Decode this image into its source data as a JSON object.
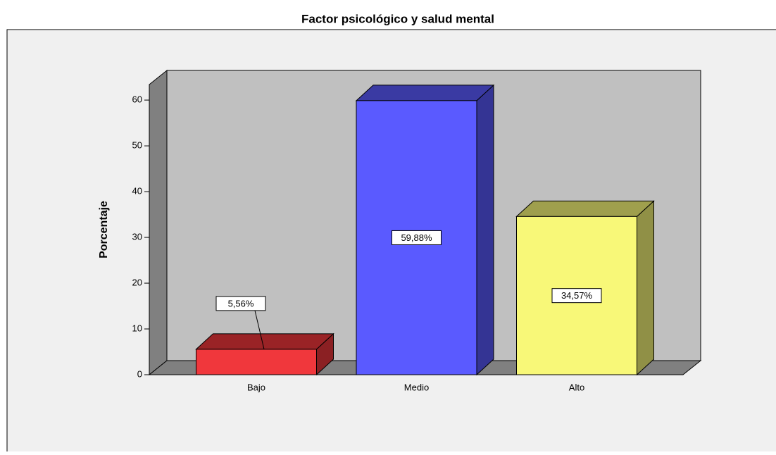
{
  "chart_data": {
    "type": "bar3d",
    "title": "Factor psicológico y salud mental",
    "ylabel": "Porcentaje",
    "categories": [
      "Bajo",
      "Medio",
      "Alto"
    ],
    "values": [
      5.56,
      59.88,
      34.57
    ],
    "value_labels": [
      "5,56%",
      "59,88%",
      "34,57%"
    ],
    "colors": [
      "#f0373c",
      "#5a5aff",
      "#f8f878"
    ],
    "ylim": [
      0,
      63.4
    ],
    "yticks": [
      0,
      10,
      20,
      30,
      40,
      50,
      60
    ]
  }
}
